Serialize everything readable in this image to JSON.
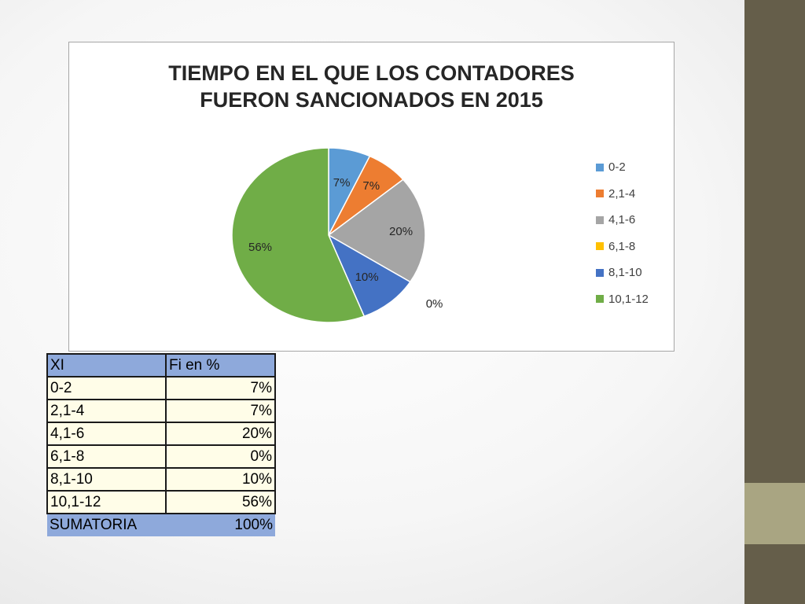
{
  "chart_data": {
    "type": "pie",
    "title": [
      "TIEMPO EN EL QUE LOS CONTADORES",
      "FUERON SANCIONADOS EN 2015"
    ],
    "categories": [
      "0-2",
      "2,1-4",
      "4,1-6",
      "6,1-8",
      "8,1-10",
      "10,1-12"
    ],
    "values": [
      7,
      7,
      20,
      0,
      10,
      56
    ],
    "data_labels": [
      "7%",
      "7%",
      "20%",
      "0%",
      "10%",
      "56%"
    ],
    "colors": [
      "#5b9bd5",
      "#ed7d31",
      "#a5a5a5",
      "#ffc000",
      "#4472c4",
      "#70ad47"
    ],
    "legend_position": "right"
  },
  "table": {
    "headers": [
      "XI",
      "Fi en %"
    ],
    "rows": [
      [
        "0-2",
        "7%"
      ],
      [
        "2,1-4",
        "7%"
      ],
      [
        "4,1-6",
        "20%"
      ],
      [
        "6,1-8",
        "0%"
      ],
      [
        "8,1-10",
        "10%"
      ],
      [
        "10,1-12",
        "56%"
      ]
    ],
    "total": [
      "SUMATORIA",
      "100%"
    ]
  }
}
